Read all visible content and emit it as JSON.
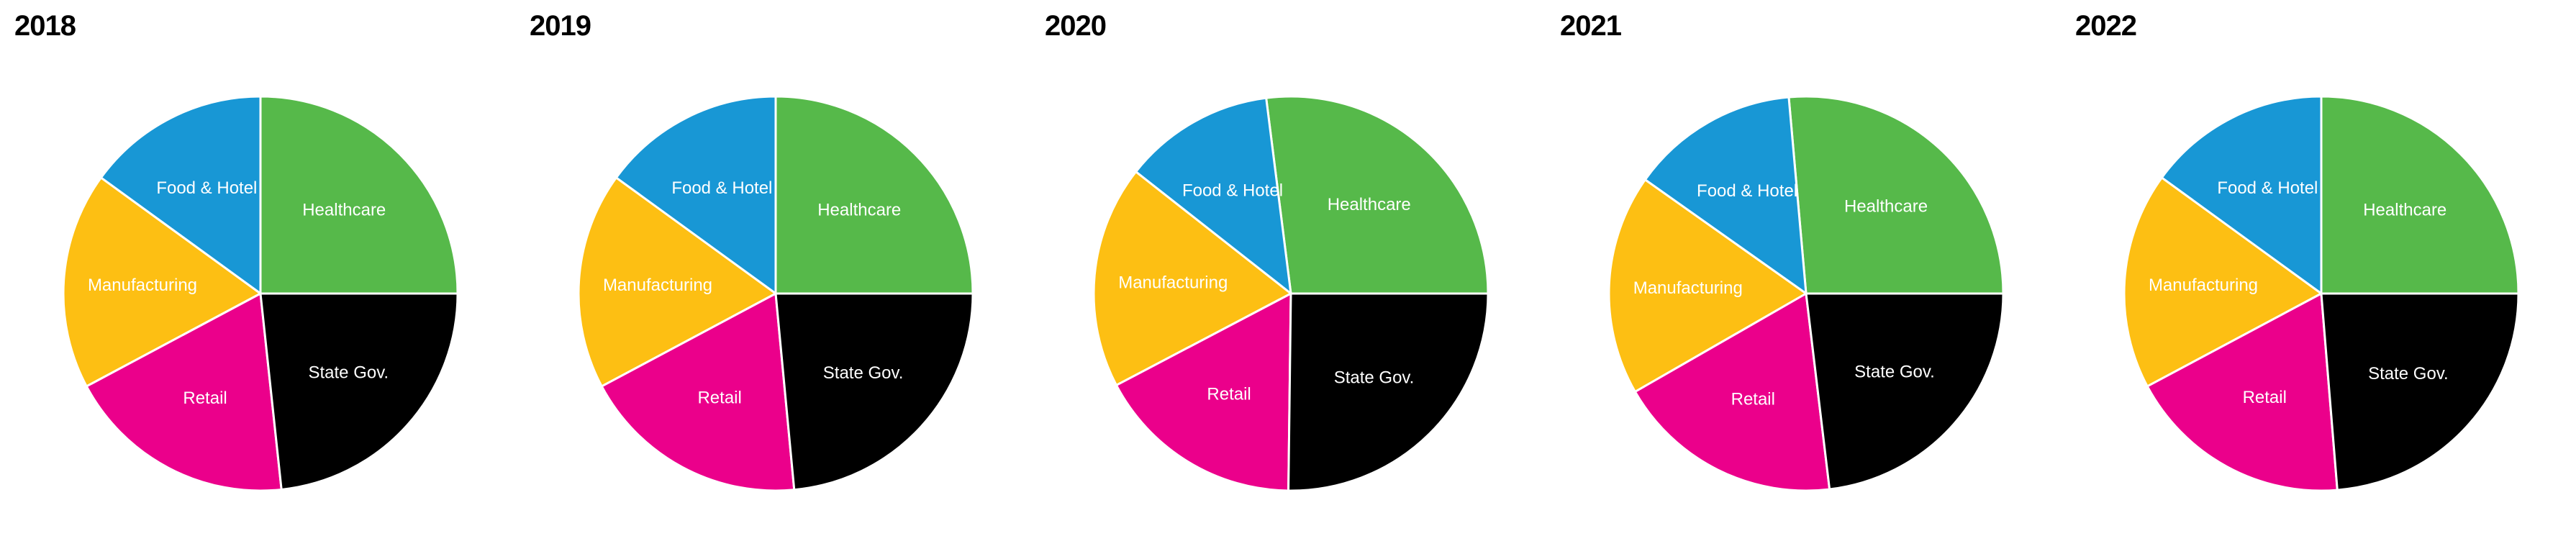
{
  "colors": {
    "Healthcare": "#56b94a",
    "Food & Hotel": "#1897d5",
    "Manufacturing": "#fdbf13",
    "Retail": "#eb008b",
    "State Gov.": "#000000",
    "edge": "#ffffff"
  },
  "chart_data": [
    {
      "type": "pie",
      "title": "2018",
      "categories": [
        "Healthcare",
        "Food & Hotel",
        "Manufacturing",
        "Retail",
        "State Gov."
      ],
      "values": [
        25.0,
        15.0,
        17.8,
        18.9,
        23.3
      ]
    },
    {
      "type": "pie",
      "title": "2019",
      "categories": [
        "Healthcare",
        "Food & Hotel",
        "Manufacturing",
        "Retail",
        "State Gov."
      ],
      "values": [
        25.0,
        15.0,
        17.8,
        18.7,
        23.5
      ]
    },
    {
      "type": "pie",
      "title": "2020",
      "categories": [
        "Healthcare",
        "Food & Hotel",
        "Manufacturing",
        "Retail",
        "State Gov."
      ],
      "values": [
        27.0,
        12.4,
        18.3,
        17.1,
        25.2
      ]
    },
    {
      "type": "pie",
      "title": "2021",
      "categories": [
        "Healthcare",
        "Food & Hotel",
        "Manufacturing",
        "Retail",
        "State Gov."
      ],
      "values": [
        26.4,
        13.8,
        18.1,
        18.6,
        23.1
      ]
    },
    {
      "type": "pie",
      "title": "2022",
      "categories": [
        "Healthcare",
        "Food & Hotel",
        "Manufacturing",
        "Retail",
        "State Gov."
      ],
      "values": [
        25.0,
        15.0,
        17.8,
        18.5,
        23.7
      ]
    }
  ]
}
